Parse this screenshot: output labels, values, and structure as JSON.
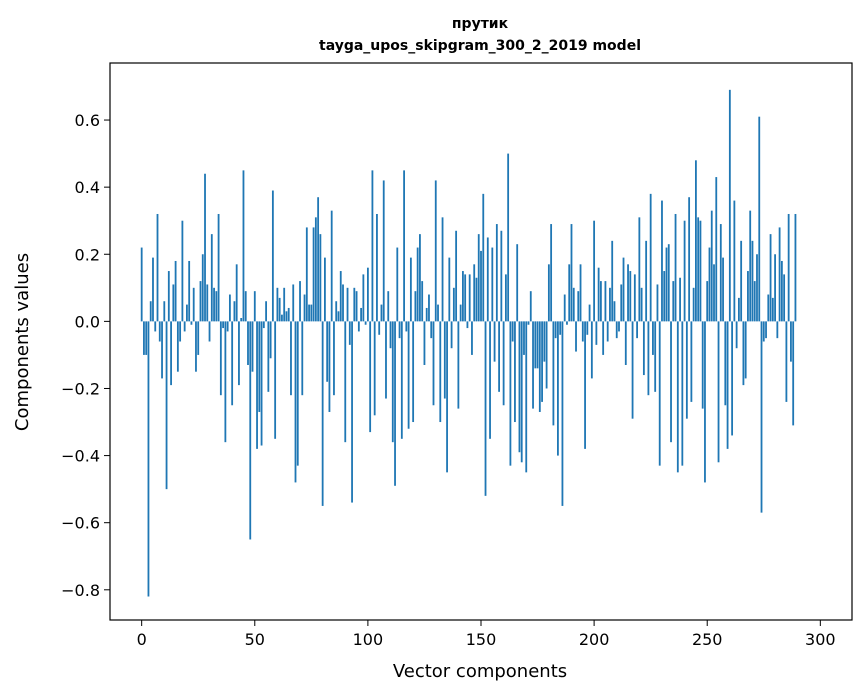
{
  "chart_data": {
    "type": "bar",
    "title": "прутик",
    "subtitle": "tayga_upos_skipgram_300_2_2019 model",
    "xlabel": "Vector components",
    "ylabel": "Components values",
    "xlim": [
      -14,
      314
    ],
    "ylim": [
      -0.89,
      0.77
    ],
    "xticks": [
      0,
      50,
      100,
      150,
      200,
      250,
      300
    ],
    "yticks": [
      -0.8,
      -0.6,
      -0.4,
      -0.2,
      0.0,
      0.2,
      0.4,
      0.6
    ],
    "ytick_labels": [
      "−0.8",
      "−0.6",
      "−0.4",
      "−0.2",
      "0.0",
      "0.2",
      "0.4",
      "0.6"
    ],
    "xtick_labels": [
      "0",
      "50",
      "100",
      "150",
      "200",
      "250",
      "300"
    ],
    "bar_color": "#1f77b4",
    "grid": false,
    "values": [
      0.22,
      -0.1,
      -0.1,
      -0.82,
      0.06,
      0.19,
      -0.03,
      0.32,
      -0.06,
      -0.17,
      0.06,
      -0.5,
      0.15,
      -0.19,
      0.11,
      0.18,
      -0.15,
      -0.06,
      0.3,
      -0.03,
      0.05,
      0.18,
      -0.01,
      0.1,
      -0.15,
      -0.1,
      0.12,
      0.2,
      0.44,
      0.11,
      -0.06,
      0.26,
      0.1,
      0.09,
      0.32,
      -0.22,
      -0.02,
      -0.36,
      -0.03,
      0.08,
      -0.25,
      0.06,
      0.17,
      -0.19,
      0.01,
      0.45,
      0.09,
      -0.13,
      -0.65,
      -0.15,
      0.09,
      -0.38,
      -0.27,
      -0.37,
      -0.02,
      0.06,
      -0.21,
      -0.11,
      0.39,
      -0.35,
      0.1,
      0.07,
      0.02,
      0.1,
      0.03,
      0.04,
      -0.22,
      0.11,
      -0.48,
      -0.43,
      0.12,
      -0.22,
      0.08,
      0.28,
      0.05,
      0.05,
      0.28,
      0.31,
      0.37,
      0.26,
      -0.55,
      0.19,
      -0.18,
      -0.27,
      0.33,
      -0.22,
      0.06,
      0.03,
      0.15,
      0.11,
      -0.36,
      0.1,
      -0.07,
      -0.54,
      0.1,
      0.09,
      -0.03,
      0.04,
      0.14,
      -0.01,
      0.16,
      -0.33,
      0.45,
      -0.28,
      0.32,
      -0.04,
      0.05,
      0.42,
      -0.23,
      0.09,
      -0.08,
      -0.36,
      -0.49,
      0.22,
      -0.05,
      -0.35,
      0.45,
      -0.03,
      -0.32,
      0.19,
      -0.3,
      0.09,
      0.22,
      0.26,
      0.12,
      -0.13,
      0.04,
      0.08,
      -0.05,
      -0.25,
      0.42,
      0.05,
      -0.3,
      0.31,
      -0.23,
      -0.45,
      0.19,
      -0.08,
      0.1,
      0.27,
      -0.26,
      0.05,
      0.15,
      0.14,
      -0.02,
      0.14,
      -0.1,
      0.17,
      0.13,
      0.26,
      0.21,
      0.38,
      -0.52,
      0.25,
      -0.35,
      0.22,
      -0.12,
      0.29,
      -0.21,
      0.27,
      -0.25,
      0.14,
      0.5,
      -0.43,
      -0.06,
      -0.3,
      0.23,
      -0.39,
      -0.42,
      -0.1,
      -0.45,
      -0.01,
      0.09,
      -0.26,
      -0.14,
      -0.14,
      -0.27,
      -0.24,
      -0.12,
      -0.2,
      0.17,
      0.29,
      -0.31,
      -0.05,
      -0.4,
      -0.04,
      -0.55,
      0.08,
      -0.01,
      0.17,
      0.29,
      0.1,
      -0.09,
      0.09,
      0.17,
      -0.06,
      -0.38,
      -0.04,
      0.05,
      -0.17,
      0.3,
      -0.07,
      0.16,
      0.12,
      -0.1,
      0.12,
      -0.06,
      0.1,
      0.24,
      0.06,
      -0.05,
      -0.03,
      0.11,
      0.19,
      -0.13,
      0.17,
      0.15,
      -0.29,
      0.14,
      -0.05,
      0.31,
      0.1,
      -0.16,
      0.24,
      -0.22,
      0.38,
      -0.1,
      -0.21,
      0.11,
      -0.43,
      0.36,
      0.15,
      0.22,
      0.23,
      -0.36,
      0.12,
      0.32,
      -0.45,
      0.13,
      -0.43,
      0.3,
      -0.29,
      0.37,
      -0.24,
      0.1,
      0.48,
      0.31,
      0.3,
      -0.26,
      -0.48,
      0.12,
      0.22,
      0.33,
      0.17,
      0.43,
      -0.42,
      0.29,
      0.19,
      -0.25,
      -0.38,
      0.69,
      -0.34,
      0.36,
      -0.08,
      0.07,
      0.24,
      -0.19,
      -0.17,
      0.15,
      0.33,
      0.24,
      0.12,
      0.2,
      0.61,
      -0.57,
      -0.06,
      -0.05,
      0.08,
      0.26,
      0.07,
      0.2,
      -0.05,
      0.28,
      0.18,
      0.14,
      -0.24,
      0.32,
      -0.12,
      -0.31,
      0.32
    ]
  }
}
